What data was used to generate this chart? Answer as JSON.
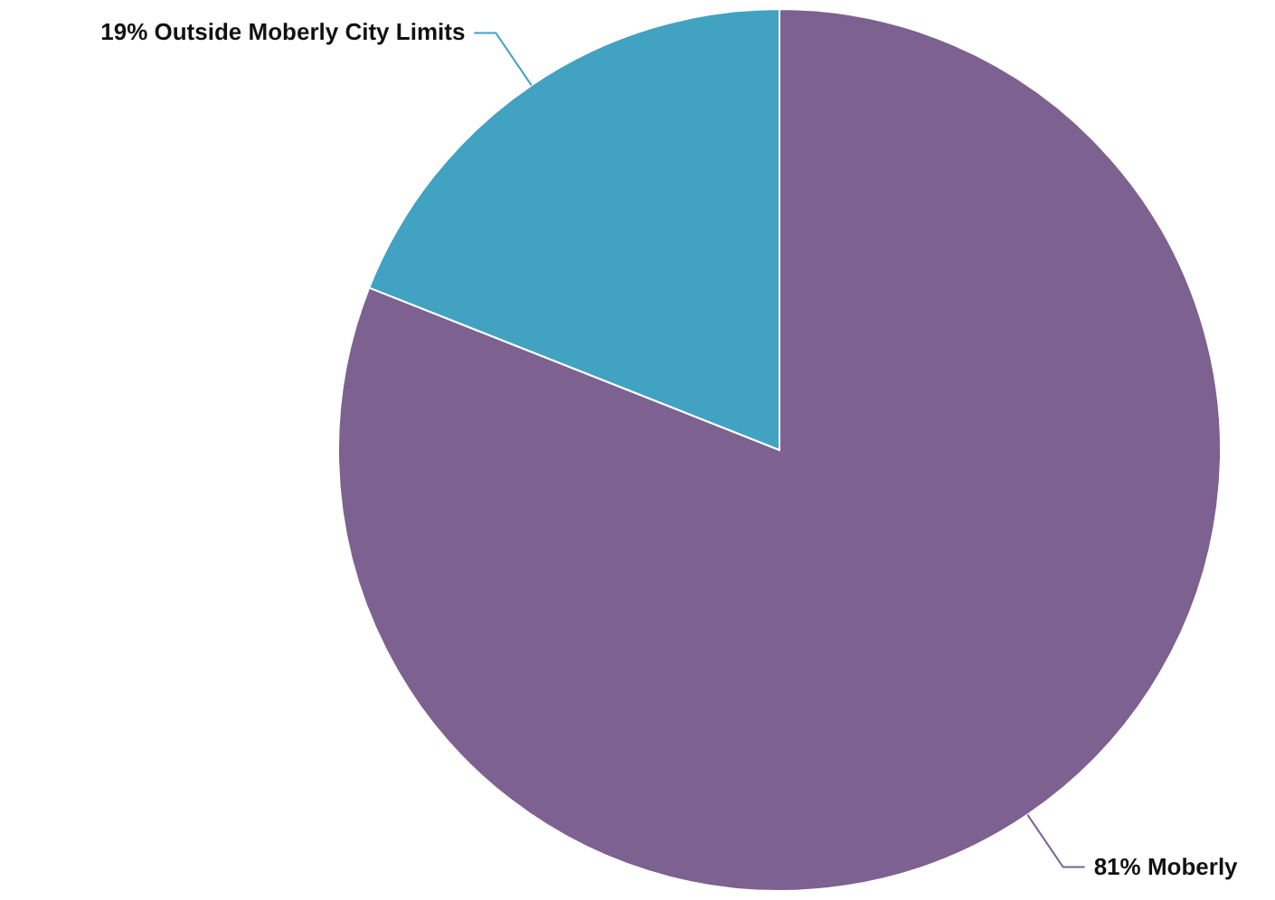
{
  "chart_data": {
    "type": "pie",
    "categories": [
      "Moberly",
      "Outside Moberly City Limits"
    ],
    "values": [
      81,
      19
    ],
    "colors": [
      "#7d6190",
      "#41a2c2"
    ],
    "value_labels": [
      "81%",
      "19%"
    ]
  }
}
